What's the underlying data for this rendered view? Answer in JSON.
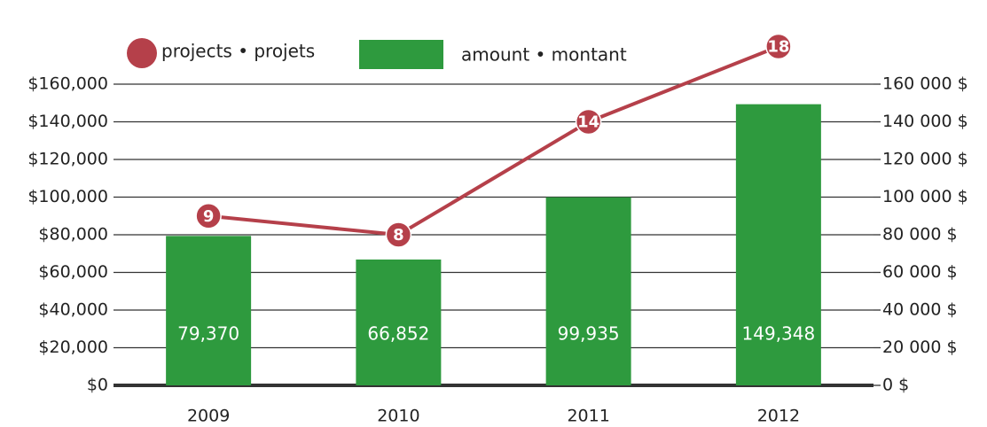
{
  "chart_data": {
    "type": "bar-line",
    "categories": [
      "2009",
      "2010",
      "2011",
      "2012"
    ],
    "series": [
      {
        "name": "amount • montant",
        "type": "bar",
        "color": "#2e9a3e",
        "values": [
          79370,
          66852,
          99935,
          149348
        ],
        "value_labels": [
          "79,370",
          "66,852",
          "99,935",
          "149,348"
        ]
      },
      {
        "name": "projects • projets",
        "type": "line",
        "axis": "y2",
        "color": "#b5404a",
        "values": [
          9,
          8,
          14,
          18
        ]
      }
    ],
    "ylim": [
      0,
      160000
    ],
    "yticks": [
      {
        "value": 0,
        "label": "$0"
      },
      {
        "value": 20000,
        "label": "$20,000"
      },
      {
        "value": 40000,
        "label": "$40,000"
      },
      {
        "value": 60000,
        "label": "$60,000"
      },
      {
        "value": 80000,
        "label": "$80,000"
      },
      {
        "value": 100000,
        "label": "$100,000"
      },
      {
        "value": 120000,
        "label": "$120,000"
      },
      {
        "value": 140000,
        "label": "$140,000"
      },
      {
        "value": 160000,
        "label": "$160,000"
      }
    ],
    "yticks_right": [
      {
        "value": 0,
        "label": "0 $"
      },
      {
        "value": 20000,
        "label": "20 000 $"
      },
      {
        "value": 40000,
        "label": "40 000 $"
      },
      {
        "value": 60000,
        "label": "60 000 $"
      },
      {
        "value": 80000,
        "label": "80 000 $"
      },
      {
        "value": 100000,
        "label": "100 000 $"
      },
      {
        "value": 120000,
        "label": "120 000 $"
      },
      {
        "value": 140000,
        "label": "140 000 $"
      },
      {
        "value": 160000,
        "label": "160 000 $"
      }
    ],
    "y2lim": [
      0,
      16
    ],
    "grid": true
  }
}
